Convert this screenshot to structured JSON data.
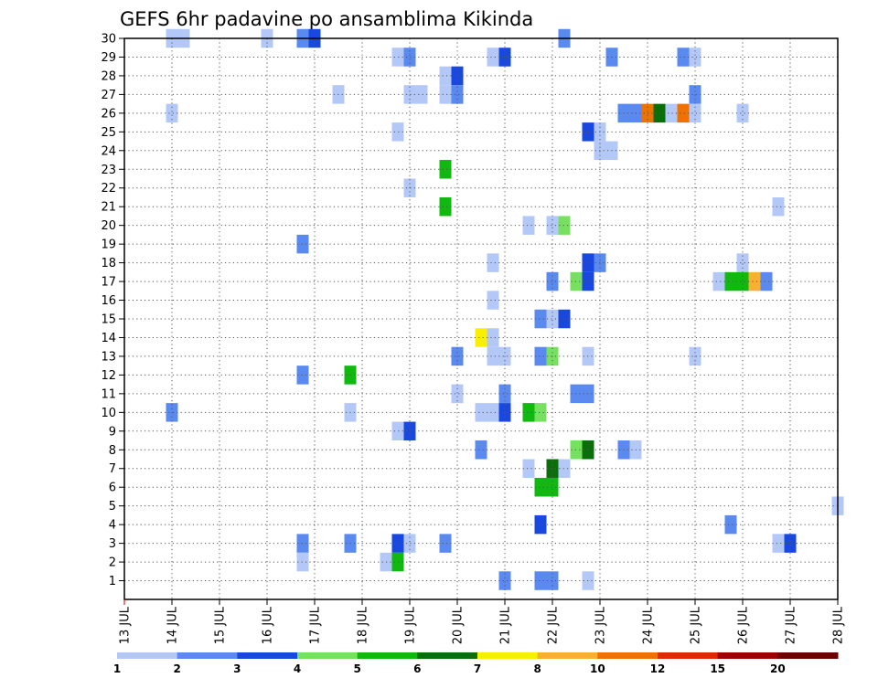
{
  "chart_data": {
    "type": "heatmap",
    "title": "GEFS 6hr padavine po ansamblima Kikinda",
    "x_tick_labels": [
      "13 JUL",
      "14 JUL",
      "15 JUL",
      "16 JUL",
      "17 JUL",
      "18 JUL",
      "19 JUL",
      "20 JUL",
      "21 JUL",
      "22 JUL",
      "23 JUL",
      "24 JUL",
      "25 JUL",
      "26 JUL",
      "27 JUL",
      "28 JUL"
    ],
    "y_tick_labels": [
      "1",
      "2",
      "3",
      "4",
      "5",
      "6",
      "7",
      "8",
      "9",
      "10",
      "11",
      "12",
      "13",
      "14",
      "15",
      "16",
      "17",
      "18",
      "19",
      "20",
      "21",
      "22",
      "23",
      "24",
      "25",
      "26",
      "27",
      "28",
      "29",
      "30"
    ],
    "ylim": [
      0,
      30
    ],
    "grid": true,
    "colorbar": {
      "levels": [
        "1",
        "2",
        "3",
        "4",
        "5",
        "6",
        "7",
        "8",
        "10",
        "12",
        "15",
        "20"
      ],
      "colors": [
        "#b4c8f8",
        "#5a8af0",
        "#1848e0",
        "#78e060",
        "#10b810",
        "#0a6e0a",
        "#f8f000",
        "#f8b030",
        "#f07000",
        "#e02808",
        "#a00000",
        "#6a0000"
      ]
    },
    "points": [
      {
        "x": 14.0,
        "y": 30,
        "v": 1
      },
      {
        "x": 14.25,
        "y": 30,
        "v": 1
      },
      {
        "x": 16.0,
        "y": 30,
        "v": 1
      },
      {
        "x": 16.75,
        "y": 30,
        "v": 2
      },
      {
        "x": 17.0,
        "y": 30,
        "v": 3
      },
      {
        "x": 22.25,
        "y": 30,
        "v": 2
      },
      {
        "x": 18.75,
        "y": 29,
        "v": 1
      },
      {
        "x": 19.0,
        "y": 29,
        "v": 2
      },
      {
        "x": 20.75,
        "y": 29,
        "v": 1
      },
      {
        "x": 21.0,
        "y": 29,
        "v": 3
      },
      {
        "x": 23.25,
        "y": 29,
        "v": 2
      },
      {
        "x": 24.75,
        "y": 29,
        "v": 2
      },
      {
        "x": 25.0,
        "y": 29,
        "v": 1
      },
      {
        "x": 19.75,
        "y": 28,
        "v": 1
      },
      {
        "x": 20.0,
        "y": 28,
        "v": 3
      },
      {
        "x": 17.5,
        "y": 27,
        "v": 1
      },
      {
        "x": 19.0,
        "y": 27,
        "v": 1
      },
      {
        "x": 19.25,
        "y": 27,
        "v": 1
      },
      {
        "x": 19.75,
        "y": 27,
        "v": 1
      },
      {
        "x": 20.0,
        "y": 27,
        "v": 2
      },
      {
        "x": 25.0,
        "y": 27,
        "v": 2
      },
      {
        "x": 14.0,
        "y": 26,
        "v": 1
      },
      {
        "x": 23.5,
        "y": 26,
        "v": 2
      },
      {
        "x": 23.75,
        "y": 26,
        "v": 2
      },
      {
        "x": 24.0,
        "y": 26,
        "v": 10
      },
      {
        "x": 24.25,
        "y": 26,
        "v": 6
      },
      {
        "x": 24.5,
        "y": 26,
        "v": 1
      },
      {
        "x": 24.75,
        "y": 26,
        "v": 10
      },
      {
        "x": 25.0,
        "y": 26,
        "v": 1
      },
      {
        "x": 26.0,
        "y": 26,
        "v": 1
      },
      {
        "x": 18.75,
        "y": 25,
        "v": 1
      },
      {
        "x": 22.75,
        "y": 25,
        "v": 3
      },
      {
        "x": 23.0,
        "y": 25,
        "v": 1
      },
      {
        "x": 23.0,
        "y": 24,
        "v": 1
      },
      {
        "x": 23.25,
        "y": 24,
        "v": 1
      },
      {
        "x": 19.75,
        "y": 23,
        "v": 5
      },
      {
        "x": 19.0,
        "y": 22,
        "v": 1
      },
      {
        "x": 19.75,
        "y": 21,
        "v": 5
      },
      {
        "x": 26.75,
        "y": 21,
        "v": 1
      },
      {
        "x": 21.5,
        "y": 20,
        "v": 1
      },
      {
        "x": 22.0,
        "y": 20,
        "v": 1
      },
      {
        "x": 22.25,
        "y": 20,
        "v": 4
      },
      {
        "x": 16.75,
        "y": 19,
        "v": 2
      },
      {
        "x": 20.75,
        "y": 18,
        "v": 1
      },
      {
        "x": 22.75,
        "y": 18,
        "v": 3
      },
      {
        "x": 23.0,
        "y": 18,
        "v": 2
      },
      {
        "x": 26.0,
        "y": 18,
        "v": 1
      },
      {
        "x": 22.5,
        "y": 17,
        "v": 4
      },
      {
        "x": 22.75,
        "y": 17,
        "v": 3
      },
      {
        "x": 25.5,
        "y": 17,
        "v": 1
      },
      {
        "x": 25.75,
        "y": 17,
        "v": 5
      },
      {
        "x": 26.0,
        "y": 17,
        "v": 5
      },
      {
        "x": 26.25,
        "y": 17,
        "v": 8
      },
      {
        "x": 26.5,
        "y": 17,
        "v": 2
      },
      {
        "x": 22.0,
        "y": 17,
        "v": 2
      },
      {
        "x": 20.75,
        "y": 16,
        "v": 1
      },
      {
        "x": 21.75,
        "y": 15,
        "v": 2
      },
      {
        "x": 22.0,
        "y": 15,
        "v": 1
      },
      {
        "x": 22.25,
        "y": 15,
        "v": 3
      },
      {
        "x": 20.5,
        "y": 14,
        "v": 7
      },
      {
        "x": 20.75,
        "y": 14,
        "v": 1
      },
      {
        "x": 20.0,
        "y": 13,
        "v": 2
      },
      {
        "x": 20.75,
        "y": 13,
        "v": 1
      },
      {
        "x": 21.0,
        "y": 13,
        "v": 1
      },
      {
        "x": 21.75,
        "y": 13,
        "v": 2
      },
      {
        "x": 22.0,
        "y": 13,
        "v": 4
      },
      {
        "x": 22.75,
        "y": 13,
        "v": 1
      },
      {
        "x": 25.0,
        "y": 13,
        "v": 1
      },
      {
        "x": 16.75,
        "y": 12,
        "v": 2
      },
      {
        "x": 17.75,
        "y": 12,
        "v": 5
      },
      {
        "x": 20.0,
        "y": 11,
        "v": 1
      },
      {
        "x": 21.0,
        "y": 11,
        "v": 2
      },
      {
        "x": 22.5,
        "y": 11,
        "v": 2
      },
      {
        "x": 22.75,
        "y": 11,
        "v": 2
      },
      {
        "x": 14.0,
        "y": 10,
        "v": 2
      },
      {
        "x": 17.75,
        "y": 10,
        "v": 1
      },
      {
        "x": 20.5,
        "y": 10,
        "v": 1
      },
      {
        "x": 20.75,
        "y": 10,
        "v": 1
      },
      {
        "x": 21.0,
        "y": 10,
        "v": 3
      },
      {
        "x": 21.5,
        "y": 10,
        "v": 5
      },
      {
        "x": 21.75,
        "y": 10,
        "v": 4
      },
      {
        "x": 18.75,
        "y": 9,
        "v": 1
      },
      {
        "x": 19.0,
        "y": 9,
        "v": 3
      },
      {
        "x": 20.5,
        "y": 8,
        "v": 2
      },
      {
        "x": 22.5,
        "y": 8,
        "v": 4
      },
      {
        "x": 22.75,
        "y": 8,
        "v": 6
      },
      {
        "x": 23.5,
        "y": 8,
        "v": 2
      },
      {
        "x": 23.75,
        "y": 8,
        "v": 1
      },
      {
        "x": 21.5,
        "y": 7,
        "v": 1
      },
      {
        "x": 22.0,
        "y": 7,
        "v": 6
      },
      {
        "x": 22.25,
        "y": 7,
        "v": 1
      },
      {
        "x": 21.75,
        "y": 6,
        "v": 5
      },
      {
        "x": 22.0,
        "y": 6,
        "v": 5
      },
      {
        "x": 28.0,
        "y": 5,
        "v": 1
      },
      {
        "x": 21.75,
        "y": 4,
        "v": 3
      },
      {
        "x": 25.75,
        "y": 4,
        "v": 2
      },
      {
        "x": 16.75,
        "y": 3,
        "v": 2
      },
      {
        "x": 17.75,
        "y": 3,
        "v": 2
      },
      {
        "x": 18.75,
        "y": 3,
        "v": 3
      },
      {
        "x": 19.0,
        "y": 3,
        "v": 1
      },
      {
        "x": 19.75,
        "y": 3,
        "v": 2
      },
      {
        "x": 26.75,
        "y": 3,
        "v": 1
      },
      {
        "x": 27.0,
        "y": 3,
        "v": 3
      },
      {
        "x": 16.75,
        "y": 2,
        "v": 1
      },
      {
        "x": 18.5,
        "y": 2,
        "v": 1
      },
      {
        "x": 18.75,
        "y": 2,
        "v": 5
      },
      {
        "x": 21.0,
        "y": 1,
        "v": 2
      },
      {
        "x": 21.75,
        "y": 1,
        "v": 2
      },
      {
        "x": 22.0,
        "y": 1,
        "v": 2
      },
      {
        "x": 22.75,
        "y": 1,
        "v": 1
      }
    ]
  }
}
